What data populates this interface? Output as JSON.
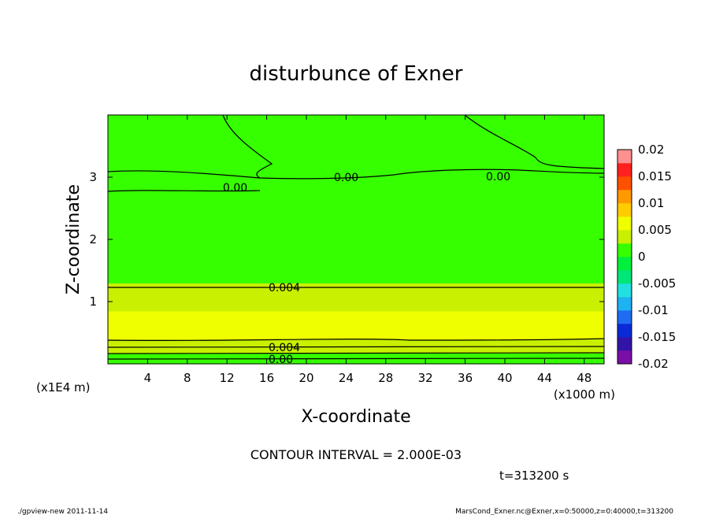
{
  "chart_data": {
    "type": "heatmap",
    "title": "disturbunce of Exner",
    "xlabel": "X-coordinate",
    "ylabel": "Z-coordinate",
    "x_unit_label": "(x1000 m)",
    "y_unit_label": "(x1E4 m)",
    "xlim": [
      0,
      50
    ],
    "ylim": [
      0,
      4
    ],
    "x_ticks": [
      4,
      8,
      12,
      16,
      20,
      24,
      28,
      32,
      36,
      40,
      44,
      48
    ],
    "y_ticks": [
      1,
      2,
      3
    ],
    "colorbar": {
      "ticks": [
        "0.02",
        "0.015",
        "0.01",
        "0.005",
        "0",
        "-0.005",
        "-0.01",
        "-0.015",
        "-0.02"
      ],
      "min": -0.02,
      "max": 0.02,
      "step": 0.0025
    },
    "contour_interval_text": "CONTOUR INTERVAL = 2.000E-03",
    "contour_labels": [
      "0.00",
      "0.00",
      "0.00",
      "0.004",
      "0.004",
      "0.00"
    ],
    "z_profile": [
      {
        "z": 0.05,
        "v": 0.0005
      },
      {
        "z": 0.25,
        "v": 0.0035
      },
      {
        "z": 0.45,
        "v": 0.0055
      },
      {
        "z": 0.6,
        "v": 0.006
      },
      {
        "z": 0.75,
        "v": 0.0055
      },
      {
        "z": 0.95,
        "v": 0.0045
      },
      {
        "z": 1.15,
        "v": 0.0035
      },
      {
        "z": 1.4,
        "v": 0.0018
      },
      {
        "z": 1.75,
        "v": 0.0008
      },
      {
        "z": 2.5,
        "v": 0.0003
      },
      {
        "z": 3.2,
        "v": 0.0001
      },
      {
        "z": 4.0,
        "v": 0.0
      }
    ]
  },
  "time_label": "t=313200 s",
  "footer_left": "./gpview-new   2011-11-14",
  "footer_right": "MarsCond_Exner.nc@Exner,x=0:50000,z=0:40000,t=313200"
}
